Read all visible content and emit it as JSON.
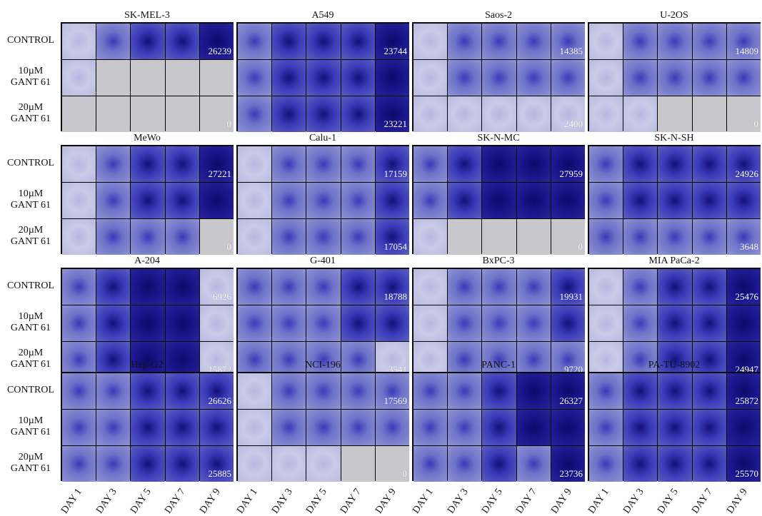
{
  "row_labels": [
    {
      "lines": [
        "CONTROL"
      ]
    },
    {
      "lines": [
        "10µM",
        "GANT 61"
      ]
    },
    {
      "lines": [
        "20µM",
        "GANT 61"
      ]
    }
  ],
  "day_labels": [
    "DAY 1",
    "DAY 3",
    "DAY 5",
    "DAY 7",
    "DAY 9"
  ],
  "colors": {
    "stain_dark": "#1a158a",
    "stain_mid": "#3a3ab8",
    "stain_light": "#8f93d4",
    "empty_well": "#c8c8cc",
    "grid_line": "#111111"
  },
  "panels": [
    {
      "name": "SK-MEL-3",
      "counts": [
        "26239",
        "",
        "0"
      ],
      "wells": [
        [
          1,
          2,
          3,
          3,
          4
        ],
        [
          1,
          0,
          0,
          0,
          0
        ],
        [
          0,
          0,
          0,
          0,
          0
        ]
      ]
    },
    {
      "name": "A549",
      "counts": [
        "23744",
        "",
        "23221"
      ],
      "wells": [
        [
          2,
          3,
          3,
          3,
          4
        ],
        [
          2,
          3,
          3,
          3,
          4
        ],
        [
          2,
          3,
          3,
          3,
          4
        ]
      ]
    },
    {
      "name": "Saos-2",
      "counts": [
        "14385",
        "",
        "2400"
      ],
      "wells": [
        [
          1,
          2,
          2,
          2,
          2
        ],
        [
          1,
          2,
          2,
          2,
          2
        ],
        [
          1,
          1,
          1,
          1,
          1
        ]
      ]
    },
    {
      "name": "U-2OS",
      "counts": [
        "14809",
        "",
        "0"
      ],
      "wells": [
        [
          1,
          2,
          2,
          2,
          2
        ],
        [
          1,
          2,
          2,
          2,
          2
        ],
        [
          1,
          1,
          0,
          0,
          0
        ]
      ]
    },
    {
      "name": "MeWo",
      "counts": [
        "27221",
        "",
        "0"
      ],
      "wells": [
        [
          1,
          2,
          3,
          3,
          4
        ],
        [
          1,
          2,
          3,
          3,
          4
        ],
        [
          1,
          2,
          2,
          2,
          0
        ]
      ]
    },
    {
      "name": "Calu-1",
      "counts": [
        "17159",
        "",
        "17054"
      ],
      "wells": [
        [
          1,
          2,
          2,
          2,
          3
        ],
        [
          1,
          2,
          2,
          2,
          3
        ],
        [
          1,
          2,
          2,
          2,
          3
        ]
      ]
    },
    {
      "name": "SK-N-MC",
      "counts": [
        "27959",
        "",
        "0"
      ],
      "wells": [
        [
          2,
          3,
          4,
          4,
          4
        ],
        [
          2,
          3,
          4,
          4,
          4
        ],
        [
          1,
          0,
          0,
          0,
          0
        ]
      ]
    },
    {
      "name": "SK-N-SH",
      "counts": [
        "24926",
        "",
        "3648"
      ],
      "wells": [
        [
          2,
          3,
          3,
          3,
          3
        ],
        [
          2,
          3,
          3,
          3,
          3
        ],
        [
          2,
          2,
          2,
          2,
          2
        ]
      ]
    },
    {
      "name": "A-204",
      "counts": [
        "6926",
        "",
        "15872"
      ],
      "wells": [
        [
          2,
          3,
          4,
          4,
          1
        ],
        [
          2,
          3,
          4,
          4,
          1
        ],
        [
          2,
          3,
          4,
          4,
          1
        ]
      ]
    },
    {
      "name": "G-401",
      "counts": [
        "18788",
        "",
        "3541"
      ],
      "wells": [
        [
          2,
          2,
          2,
          3,
          3
        ],
        [
          2,
          2,
          2,
          3,
          3
        ],
        [
          2,
          2,
          2,
          2,
          1
        ]
      ]
    },
    {
      "name": "BxPC-3",
      "counts": [
        "19931",
        "",
        "9720"
      ],
      "wells": [
        [
          1,
          2,
          2,
          2,
          3
        ],
        [
          1,
          2,
          2,
          2,
          3
        ],
        [
          1,
          2,
          2,
          2,
          2
        ]
      ]
    },
    {
      "name": "MIA PaCa-2",
      "counts": [
        "25476",
        "",
        "24947"
      ],
      "wells": [
        [
          1,
          2,
          3,
          3,
          4
        ],
        [
          1,
          2,
          3,
          3,
          4
        ],
        [
          1,
          2,
          3,
          3,
          4
        ]
      ]
    },
    {
      "name": "Hep-G2",
      "counts": [
        "26626",
        "",
        "25885"
      ],
      "wells": [
        [
          2,
          2,
          3,
          3,
          3
        ],
        [
          2,
          2,
          3,
          3,
          3
        ],
        [
          2,
          2,
          3,
          3,
          3
        ]
      ]
    },
    {
      "name": "NCI-196",
      "counts": [
        "17569",
        "",
        "0"
      ],
      "wells": [
        [
          1,
          2,
          2,
          2,
          2
        ],
        [
          1,
          2,
          2,
          2,
          2
        ],
        [
          1,
          1,
          1,
          0,
          0
        ]
      ]
    },
    {
      "name": "PANC-1",
      "counts": [
        "26327",
        "",
        "23736"
      ],
      "wells": [
        [
          2,
          2,
          3,
          4,
          4
        ],
        [
          2,
          2,
          3,
          4,
          4
        ],
        [
          2,
          2,
          3,
          2,
          4
        ]
      ]
    },
    {
      "name": "PA-TU-8902",
      "counts": [
        "25872",
        "",
        "25570"
      ],
      "wells": [
        [
          2,
          3,
          3,
          3,
          4
        ],
        [
          2,
          3,
          3,
          3,
          4
        ],
        [
          2,
          3,
          3,
          3,
          4
        ]
      ]
    }
  ]
}
